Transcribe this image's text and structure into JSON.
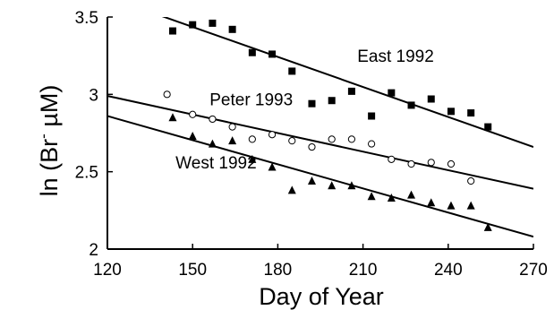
{
  "chart_data": {
    "type": "scatter",
    "xlabel": "Day of Year",
    "ylabel_parts": {
      "pre": "ln (Br",
      "sup": "-",
      "post": " µM)"
    },
    "xlim": [
      120,
      270
    ],
    "ylim": [
      2,
      3.5
    ],
    "xticks": [
      120,
      150,
      180,
      210,
      240,
      270
    ],
    "yticks": [
      2,
      2.5,
      3,
      3.5
    ],
    "ytick_labels": [
      "2",
      "2.5",
      "3",
      "3.5"
    ],
    "grid": false,
    "series": [
      {
        "name": "East 1992",
        "marker": "square",
        "x": [
          143,
          150,
          157,
          164,
          171,
          178,
          185,
          192,
          199,
          206,
          213,
          220,
          227,
          234,
          241,
          248,
          254
        ],
        "y": [
          3.41,
          3.45,
          3.46,
          3.42,
          3.27,
          3.26,
          3.15,
          2.94,
          2.96,
          3.02,
          2.86,
          3.01,
          2.93,
          2.97,
          2.89,
          2.88,
          2.79
        ],
        "fit": {
          "x": [
            120,
            270
          ],
          "y": [
            3.63,
            2.66
          ]
        }
      },
      {
        "name": "Peter 1993",
        "marker": "circle",
        "x": [
          141,
          150,
          157,
          164,
          171,
          178,
          185,
          192,
          199,
          206,
          213,
          220,
          227,
          234,
          241,
          248
        ],
        "y": [
          3.0,
          2.87,
          2.84,
          2.79,
          2.71,
          2.74,
          2.7,
          2.66,
          2.71,
          2.71,
          2.68,
          2.58,
          2.55,
          2.56,
          2.55,
          2.44
        ],
        "fit": {
          "x": [
            120,
            270
          ],
          "y": [
            2.99,
            2.39
          ]
        }
      },
      {
        "name": "West 1992",
        "marker": "triangle",
        "x": [
          143,
          150,
          157,
          164,
          171,
          178,
          185,
          192,
          199,
          206,
          213,
          220,
          227,
          234,
          241,
          248,
          254
        ],
        "y": [
          2.85,
          2.73,
          2.68,
          2.7,
          2.58,
          2.53,
          2.38,
          2.44,
          2.41,
          2.41,
          2.34,
          2.33,
          2.35,
          2.3,
          2.28,
          2.28,
          2.14
        ],
        "fit": {
          "x": [
            120,
            270
          ],
          "y": [
            2.86,
            2.08
          ]
        }
      }
    ],
    "annotations": [
      {
        "text": "East 1992",
        "x": 208,
        "y": 3.21
      },
      {
        "text": "Peter 1993",
        "x": 156,
        "y": 2.93
      },
      {
        "text": "West 1992",
        "x": 144,
        "y": 2.52
      }
    ]
  }
}
